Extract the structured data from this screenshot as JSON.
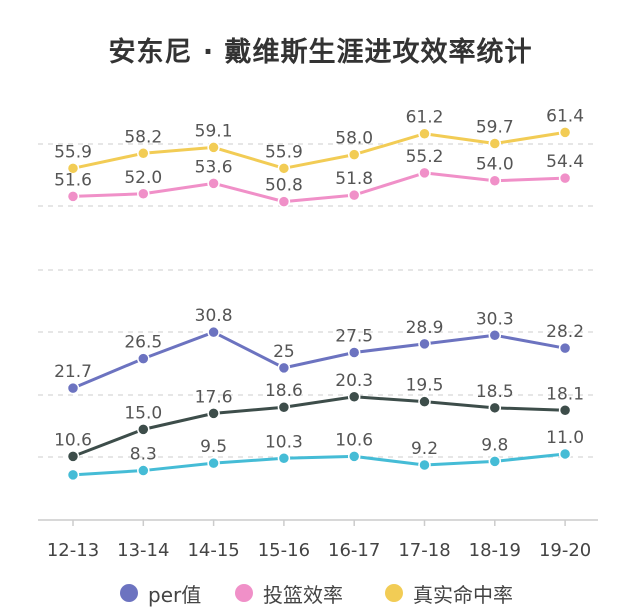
{
  "chart_data": {
    "type": "line",
    "title": "安东尼 · 戴维斯生涯进攻效率统计",
    "categories": [
      "12-13",
      "13-14",
      "14-15",
      "15-16",
      "16-17",
      "17-18",
      "18-19",
      "19-20"
    ],
    "series": [
      {
        "name": "真实命中率",
        "color": "#f2cc55",
        "values": [
          55.9,
          58.2,
          59.1,
          55.9,
          58.0,
          61.2,
          59.7,
          61.4
        ],
        "labels": [
          "55.9",
          "58.2",
          "59.1",
          "55.9",
          "58.0",
          "61.2",
          "59.7",
          "61.4"
        ]
      },
      {
        "name": "投篮效率",
        "color": "#f090c8",
        "values": [
          51.6,
          52.0,
          53.6,
          50.8,
          51.8,
          55.2,
          54.0,
          54.4
        ],
        "labels": [
          "51.6",
          "52.0",
          "53.6",
          "50.8",
          "51.8",
          "55.2",
          "54.0",
          "54.4"
        ]
      },
      {
        "name": "per值",
        "color": "#6c73c0",
        "values": [
          21.7,
          26.5,
          30.8,
          25,
          27.5,
          28.9,
          30.3,
          28.2
        ],
        "labels": [
          "21.7",
          "26.5",
          "30.8",
          "25",
          "27.5",
          "28.9",
          "30.3",
          "28.2"
        ]
      },
      {
        "name": "",
        "color": "#3d4d4a",
        "values": [
          10.6,
          15.0,
          17.6,
          18.6,
          20.3,
          19.5,
          18.5,
          18.1
        ],
        "labels": [
          "10.6",
          "15.0",
          "17.6",
          "18.6",
          "20.3",
          "19.5",
          "18.5",
          "18.1"
        ]
      },
      {
        "name": "",
        "color": "#45bcd6",
        "values": [
          7.6,
          8.3,
          9.5,
          10.3,
          10.6,
          9.2,
          9.8,
          11.0
        ],
        "labels": [
          "",
          "8.3",
          "9.5",
          "10.3",
          "10.6",
          "9.2",
          "9.8",
          "11.0"
        ]
      }
    ],
    "legend": {
      "placement": "bottom",
      "items": [
        {
          "label": "per值",
          "color": "#6c73c0"
        },
        {
          "label": "投篮效率",
          "color": "#f090c8"
        },
        {
          "label": "真实命中率",
          "color": "#f2cc55"
        }
      ]
    },
    "grid": true,
    "colors": {
      "title": "#333333",
      "axis": "#cccccc",
      "grid": "#dddddd",
      "label": "#555555"
    }
  }
}
